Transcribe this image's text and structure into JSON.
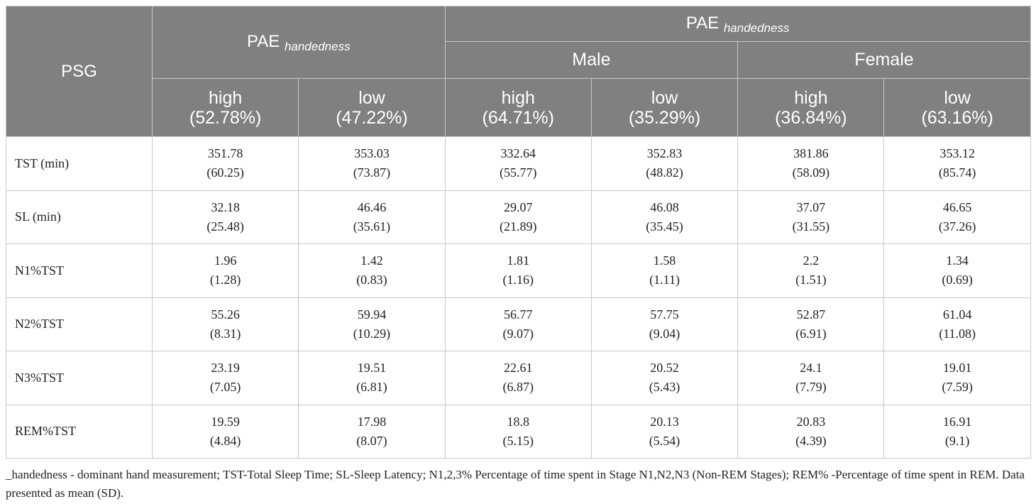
{
  "header": {
    "psg": "PSG",
    "pae": "PAE",
    "pae_sub": "handedness",
    "male": "Male",
    "female": "Female",
    "high": "high",
    "low": "low"
  },
  "groups": [
    {
      "level": "high",
      "pct": "(52.78%)"
    },
    {
      "level": "low",
      "pct": "(47.22%)"
    },
    {
      "level": "high",
      "pct": "(64.71%)"
    },
    {
      "level": "low",
      "pct": "(35.29%)"
    },
    {
      "level": "high",
      "pct": "(36.84%)"
    },
    {
      "level": "low",
      "pct": "(63.16%)"
    }
  ],
  "rows": [
    {
      "label": "TST (min)",
      "cells": [
        {
          "mean": "351.78",
          "sd": "(60.25)"
        },
        {
          "mean": "353.03",
          "sd": "(73.87)"
        },
        {
          "mean": "332.64",
          "sd": "(55.77)"
        },
        {
          "mean": "352.83",
          "sd": "(48.82)"
        },
        {
          "mean": "381.86",
          "sd": "(58.09)"
        },
        {
          "mean": "353.12",
          "sd": "(85.74)"
        }
      ]
    },
    {
      "label": "SL (min)",
      "cells": [
        {
          "mean": "32.18",
          "sd": "(25.48)"
        },
        {
          "mean": "46.46",
          "sd": "(35.61)"
        },
        {
          "mean": "29.07",
          "sd": "(21.89)"
        },
        {
          "mean": "46.08",
          "sd": "(35.45)"
        },
        {
          "mean": "37.07",
          "sd": "(31.55)"
        },
        {
          "mean": "46.65",
          "sd": "(37.26)"
        }
      ]
    },
    {
      "label": "N1%TST",
      "cells": [
        {
          "mean": "1.96",
          "sd": "(1.28)"
        },
        {
          "mean": "1.42",
          "sd": "(0.83)"
        },
        {
          "mean": "1.81",
          "sd": "(1.16)"
        },
        {
          "mean": "1.58",
          "sd": "(1.11)"
        },
        {
          "mean": "2.2",
          "sd": "(1.51)"
        },
        {
          "mean": "1.34",
          "sd": "(0.69)"
        }
      ]
    },
    {
      "label": "N2%TST",
      "cells": [
        {
          "mean": "55.26",
          "sd": "(8.31)"
        },
        {
          "mean": "59.94",
          "sd": "(10.29)"
        },
        {
          "mean": "56.77",
          "sd": "(9.07)"
        },
        {
          "mean": "57.75",
          "sd": "(9.04)"
        },
        {
          "mean": "52.87",
          "sd": "(6.91)"
        },
        {
          "mean": "61.04",
          "sd": "(11.08)"
        }
      ]
    },
    {
      "label": "N3%TST",
      "cells": [
        {
          "mean": "23.19",
          "sd": "(7.05)"
        },
        {
          "mean": "19.51",
          "sd": "(6.81)"
        },
        {
          "mean": "22.61",
          "sd": "(6.87)"
        },
        {
          "mean": "20.52",
          "sd": "(5.43)"
        },
        {
          "mean": "24.1",
          "sd": "(7.79)"
        },
        {
          "mean": "19.01",
          "sd": "(7.59)"
        }
      ]
    },
    {
      "label": "REM%TST",
      "cells": [
        {
          "mean": "19.59",
          "sd": "(4.84)"
        },
        {
          "mean": "17.98",
          "sd": "(8.07)"
        },
        {
          "mean": "18.8",
          "sd": "(5.15)"
        },
        {
          "mean": "20.13",
          "sd": "(5.54)"
        },
        {
          "mean": "20.83",
          "sd": "(4.39)"
        },
        {
          "mean": "16.91",
          "sd": "(9.1)"
        }
      ]
    }
  ],
  "footnote": "_handedness - dominant hand measurement; TST-Total Sleep Time; SL-Sleep Latency; N1,2,3% Percentage of time spent in Stage N1,N2,N3 (Non-REM Stages); REM% -Percentage of time spent in REM. Data presented as mean (SD).",
  "colors": {
    "header_bg": "#808080",
    "header_text": "#ffffff",
    "border": "#c8c8c8"
  }
}
